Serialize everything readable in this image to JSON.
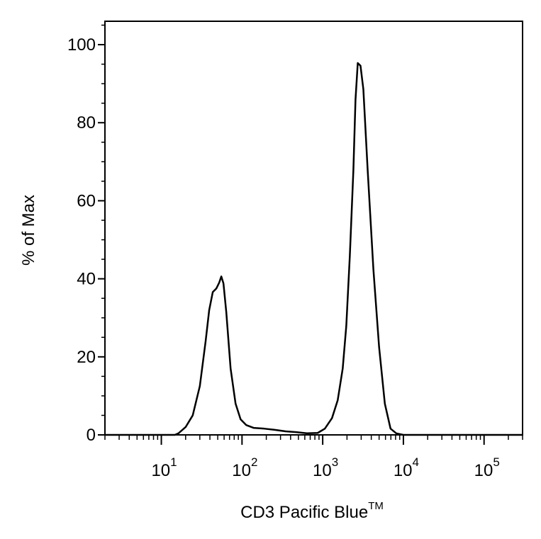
{
  "chart_data": {
    "type": "line",
    "ylabel": "% of Max",
    "xlabel": "CD3 Pacific Blue",
    "xlabel_sup": "TM",
    "xscale": "log",
    "xlim": [
      2,
      300000
    ],
    "ylim": [
      0,
      106
    ],
    "xticks": [
      {
        "value": 10,
        "label": "10",
        "sup": "1"
      },
      {
        "value": 100,
        "label": "10",
        "sup": "2"
      },
      {
        "value": 1000,
        "label": "10",
        "sup": "3"
      },
      {
        "value": 10000,
        "label": "10",
        "sup": "4"
      },
      {
        "value": 100000,
        "label": "10",
        "sup": "5"
      }
    ],
    "xminor": [
      2,
      3,
      4,
      5,
      6,
      7,
      8,
      9,
      20,
      30,
      40,
      50,
      60,
      70,
      80,
      90,
      200,
      300,
      400,
      500,
      600,
      700,
      800,
      900,
      2000,
      3000,
      4000,
      5000,
      6000,
      7000,
      8000,
      9000,
      20000,
      30000,
      40000,
      50000,
      60000,
      70000,
      80000,
      90000,
      200000,
      300000
    ],
    "yticks": [
      0,
      20,
      40,
      60,
      80,
      100
    ],
    "yminor": [
      5,
      10,
      15,
      25,
      30,
      35,
      45,
      50,
      55,
      65,
      70,
      75,
      85,
      90,
      95,
      105
    ],
    "series": [
      {
        "color": "#000000",
        "x": [
          2,
          14.7,
          16.3,
          20,
          24.5,
          30,
          35.4,
          39.2,
          43.4,
          48,
          52.1,
          55.4,
          58.9,
          63.8,
          72.2,
          83.2,
          96,
          113,
          139,
          188,
          255,
          347,
          471,
          638,
          867,
          1064,
          1304,
          1535,
          1770,
          1960,
          2170,
          2400,
          2550,
          2720,
          2940,
          3190,
          3610,
          4250,
          5000,
          5890,
          6930,
          8160,
          10000,
          300000
        ],
        "values": [
          0,
          0,
          0.4,
          2,
          5,
          12.5,
          24,
          32,
          36.6,
          37.5,
          39,
          40.6,
          38.8,
          31.5,
          17,
          8,
          4,
          2.5,
          1.8,
          1.6,
          1.3,
          0.9,
          0.7,
          0.4,
          0.5,
          1.6,
          4.3,
          8.9,
          17,
          27.9,
          46,
          67.8,
          85.9,
          95.3,
          94.6,
          88.6,
          67.8,
          42.4,
          22.5,
          8,
          1.6,
          0.4,
          0,
          0
        ]
      }
    ]
  }
}
